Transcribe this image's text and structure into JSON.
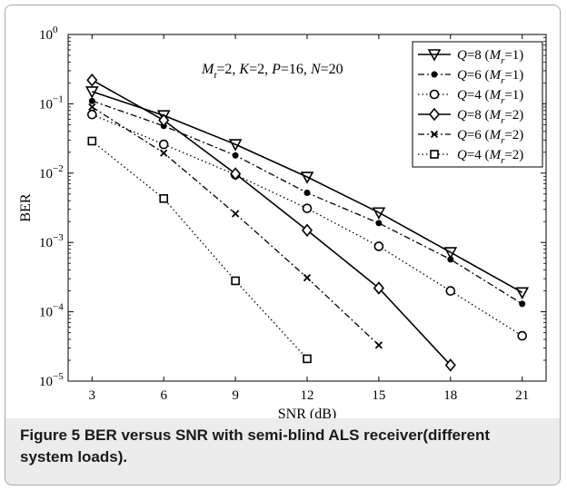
{
  "figure": {
    "label": "Figure 5",
    "caption": " BER versus SNR with semi-blind ALS receiver(different system loads)."
  },
  "chart_data": {
    "type": "line",
    "title": "",
    "xlabel": "SNR (dB)",
    "ylabel": "BER",
    "x": [
      3,
      6,
      9,
      12,
      15,
      18,
      21
    ],
    "xticks": [
      3,
      6,
      9,
      12,
      15,
      18,
      21
    ],
    "xlim": [
      2,
      22
    ],
    "yscale": "log",
    "ylim": [
      1e-05,
      1
    ],
    "yticks": [
      1e-05,
      0.0001,
      0.001,
      0.01,
      0.1,
      1
    ],
    "ytick_base": "10",
    "ytick_exponents": [
      "−5",
      "−4",
      "−3",
      "−2",
      "−1",
      "0"
    ],
    "grid": false,
    "legend_position": "top-right",
    "annotation": {
      "mt_label": "M",
      "mt_sub": "t",
      "mt_val": "=2,",
      "k_label": "K",
      "k_val": "=2,",
      "p_label": "P",
      "p_val": "=16,",
      "n_label": "N",
      "n_val": "=20"
    },
    "series": [
      {
        "name": "Q=8 (Mr=1)",
        "q_val": "=8 (",
        "mr_val": "=1)",
        "marker": "triangle-down",
        "dash": "solid",
        "x": [
          3,
          6,
          9,
          12,
          15,
          18,
          21
        ],
        "values": [
          0.15,
          0.068,
          0.026,
          0.0088,
          0.0027,
          0.00072,
          0.00019
        ]
      },
      {
        "name": "Q=6 (Mr=1)",
        "q_val": "=6 (",
        "mr_val": "=1)",
        "marker": "dot",
        "dash": "dashdot",
        "x": [
          3,
          6,
          9,
          12,
          15,
          18,
          21
        ],
        "values": [
          0.11,
          0.048,
          0.018,
          0.0052,
          0.0019,
          0.00057,
          0.00013
        ]
      },
      {
        "name": "Q=4 (Mr=1)",
        "q_val": "=4 (",
        "mr_val": "=1)",
        "marker": "circle",
        "dash": "dotted",
        "x": [
          3,
          6,
          9,
          12,
          15,
          18,
          21
        ],
        "values": [
          0.07,
          0.026,
          0.0095,
          0.0031,
          0.00088,
          0.0002,
          4.5e-05
        ]
      },
      {
        "name": "Q=8 (Mr=2)",
        "q_val": "=8 (",
        "mr_val": "=2)",
        "marker": "diamond",
        "dash": "solid",
        "x": [
          3,
          6,
          9,
          12,
          15,
          18
        ],
        "values": [
          0.22,
          0.058,
          0.0098,
          0.0015,
          0.00022,
          1.7e-05
        ]
      },
      {
        "name": "Q=6 (Mr=2)",
        "q_val": "=6 (",
        "mr_val": "=2)",
        "marker": "cross",
        "dash": "dashdot",
        "x": [
          3,
          6,
          9,
          12,
          15
        ],
        "values": [
          0.09,
          0.0195,
          0.0026,
          0.00031,
          3.3e-05
        ]
      },
      {
        "name": "Q=4 (Mr=2)",
        "q_val": "=4 (",
        "mr_val": "=2)",
        "marker": "square",
        "dash": "dotted",
        "x": [
          3,
          6,
          9,
          12
        ],
        "values": [
          0.029,
          0.0043,
          0.00028,
          2.1e-05
        ]
      }
    ]
  }
}
